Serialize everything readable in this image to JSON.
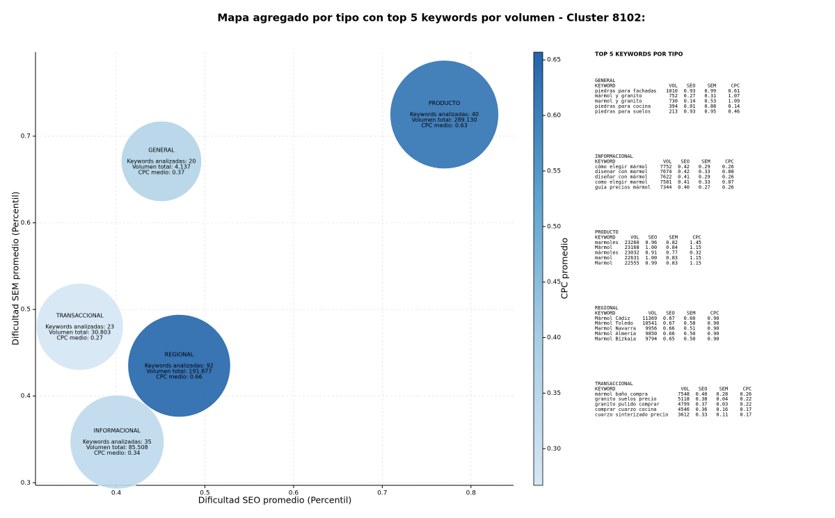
{
  "chart_data": {
    "type": "scatter",
    "title": "Mapa agregado por tipo con top 5 keywords por volumen - Cluster 8102:",
    "xlabel": "Dificultad SEO promedio (Percentil)",
    "ylabel": "Dificultad SEM promedio (Percentil)",
    "xlim": [
      0.309,
      0.848
    ],
    "ylim": [
      0.297,
      0.797
    ],
    "xticks": [
      0.4,
      0.5,
      0.6,
      0.7,
      0.8
    ],
    "yticks": [
      0.3,
      0.4,
      0.5,
      0.6,
      0.7
    ],
    "grid": true,
    "colorbar": {
      "label": "CPC promedio",
      "lim": [
        0.267,
        0.657
      ],
      "ticks": [
        {
          "value": 0.3,
          "label": "0.30"
        },
        0.35,
        {
          "value": 0.4,
          "label": "0.40"
        },
        0.45,
        {
          "value": 0.5,
          "label": "0.50"
        },
        0.55,
        {
          "value": 0.6,
          "label": "0.60"
        },
        0.65
      ],
      "colormap": [
        "#d6e6f4",
        "#a9cfe5",
        "#5da2d0",
        "#2465ab"
      ]
    },
    "points": [
      {
        "name": "GENERAL",
        "x": 0.451,
        "y": 0.671,
        "keywords_label": "Keywords analizadas: 20",
        "volume": 4137,
        "volume_label": "Volumen total: 4.137",
        "cpc": 0.37,
        "cpc_label": "CPC medio: 0.37"
      },
      {
        "name": "PRODUCTO",
        "x": 0.77,
        "y": 0.725,
        "keywords_label": "Keywords analizadas: 40",
        "volume": 289130,
        "volume_label": "Volumen total: 289.130",
        "cpc": 0.63,
        "cpc_label": "CPC medio: 0.63"
      },
      {
        "name": "TRANSACCIONAL",
        "x": 0.359,
        "y": 0.48,
        "keywords_label": "Keywords analizadas: 23",
        "volume": 30803,
        "volume_label": "Volumen total: 30.803",
        "cpc": 0.27,
        "cpc_label": "CPC medio: 0.27"
      },
      {
        "name": "REGIONAL",
        "x": 0.471,
        "y": 0.435,
        "keywords_label": "Keywords analizadas: 92",
        "volume": 191877,
        "volume_label": "Volumen total: 191.877",
        "cpc": 0.66,
        "cpc_label": "CPC medio: 0.66"
      },
      {
        "name": "INFORMACIONAL",
        "x": 0.401,
        "y": 0.347,
        "keywords_label": "Keywords analizadas: 35",
        "volume": 85508,
        "volume_label": "Volumen total: 85.508",
        "cpc": 0.34,
        "cpc_label": "CPC medio: 0.34"
      }
    ]
  },
  "panel": {
    "title": "TOP 5 KEYWORDS POR TIPO",
    "columns": [
      "KEYWORD",
      "VOL",
      "SEO",
      "SEM",
      "CPC"
    ],
    "tables": [
      {
        "title": "GENERAL",
        "rows": [
          [
            "piedras para fachadas",
            "1010",
            "0.93",
            "0.99",
            "0.61"
          ],
          [
            "mármol y granito",
            "752",
            "0.27",
            "0.31",
            "1.07"
          ],
          [
            "marmol y granito",
            "730",
            "0.14",
            "0.53",
            "1.09"
          ],
          [
            "piedras para cocina",
            "394",
            "0.01",
            "0.88",
            "0.14"
          ],
          [
            "piedras para suelos",
            "213",
            "0.93",
            "0.95",
            "0.46"
          ]
        ]
      },
      {
        "title": "INFORMACIONAL",
        "rows": [
          [
            "cómo elegir mármol",
            "7752",
            "0.42",
            "0.29",
            "0.26"
          ],
          [
            "disenar con marmol",
            "7674",
            "0.42",
            "0.33",
            "0.88"
          ],
          [
            "diseñar con mármol",
            "7622",
            "0.41",
            "0.29",
            "0.26"
          ],
          [
            "como elegir marmol",
            "7581",
            "0.41",
            "0.33",
            "0.87"
          ],
          [
            "guía precios mármol",
            "7344",
            "0.40",
            "0.27",
            "0.26"
          ]
        ]
      },
      {
        "title": "PRODUCTO",
        "rows": [
          [
            "marmoles",
            "23260",
            "0.96",
            "0.82",
            "1.45"
          ],
          [
            "Mármol",
            "23168",
            "1.00",
            "0.84",
            "1.15"
          ],
          [
            "mármoles",
            "23032",
            "0.91",
            "0.77",
            "0.32"
          ],
          [
            "marmol",
            "22631",
            "1.00",
            "0.83",
            "1.15"
          ],
          [
            "Marmol",
            "22555",
            "0.99",
            "0.83",
            "1.15"
          ]
        ]
      },
      {
        "title": "REGIONAL",
        "rows": [
          [
            "Mármol Cádiz",
            "11369",
            "0.67",
            "0.60",
            "0.90"
          ],
          [
            "Mármol Toledo",
            "10541",
            "0.67",
            "0.58",
            "0.90"
          ],
          [
            "Marmol Navarra",
            "9956",
            "0.66",
            "0.51",
            "0.90"
          ],
          [
            "Mármol Almería",
            "9850",
            "0.66",
            "0.50",
            "0.90"
          ],
          [
            "Marmol Bizkaia",
            "9794",
            "0.65",
            "0.50",
            "0.90"
          ]
        ]
      },
      {
        "title": "TRANSACCIONAL",
        "rows": [
          [
            "mármol baño compra",
            "7548",
            "0.40",
            "0.28",
            "0.26"
          ],
          [
            "granito suelos precio",
            "5118",
            "0.38",
            "0.04",
            "0.22"
          ],
          [
            "granito pulido comprar",
            "4799",
            "0.37",
            "0.03",
            "0.22"
          ],
          [
            "comprar cuarzo cocina",
            "4546",
            "0.36",
            "0.16",
            "0.17"
          ],
          [
            "cuarzo sinterizado precio",
            "3612",
            "0.33",
            "0.11",
            "0.17"
          ]
        ]
      }
    ]
  }
}
